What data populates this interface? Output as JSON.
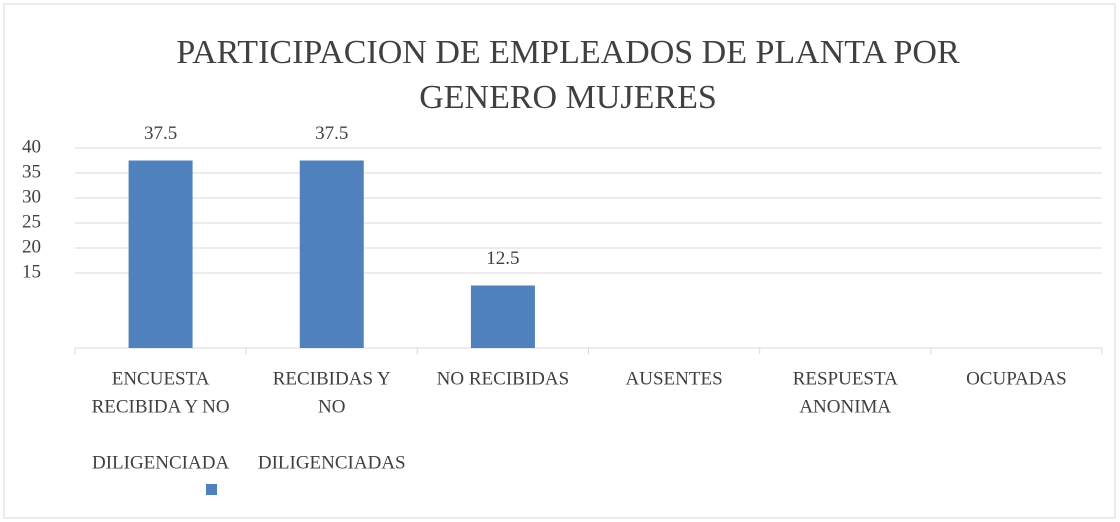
{
  "chart_data": {
    "type": "bar",
    "title": [
      "PARTICIPACION DE EMPLEADOS DE PLANTA POR",
      "GENERO MUJERES"
    ],
    "categories": [
      [
        "ENCUESTA",
        "RECIBIDA Y NO",
        "DILIGENCIADA"
      ],
      [
        "RECIBIDAS Y",
        "NO",
        "DILIGENCIADAS"
      ],
      [
        "NO RECIBIDAS"
      ],
      [
        "AUSENTES"
      ],
      [
        "RESPUESTA",
        "ANONIMA"
      ],
      [
        "OCUPADAS"
      ]
    ],
    "values": [
      37.5,
      37.5,
      12.5,
      null,
      null,
      null
    ],
    "color": "#4f81bd",
    "ylim": [
      0,
      40
    ],
    "yticks": [
      15,
      20,
      25,
      30,
      35,
      40
    ],
    "grid": true
  }
}
